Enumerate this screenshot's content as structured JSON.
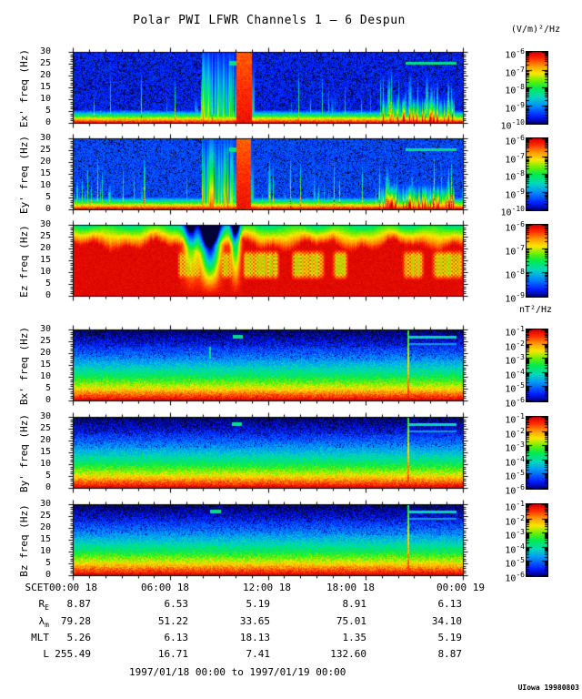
{
  "title": "Polar PWI LFWR Channels 1 — 6 Despun",
  "footer": "1997/01/18 00:00 to 1997/01/19 00:00",
  "credit": "UIowa 19980803",
  "chart_data": {
    "type": "heatmap",
    "description": "Six 24-hour frequency-time spectrograms (0-30 Hz) from Polar PWI LFWR channels 1-6 (Ex', Ey', Ez electric; Bx', By', Bz magnetic), rainbow colour scale, 1997/01/18 00:00 to 1997/01/19 00:00 SCET.",
    "x_axis": {
      "label": "SCET",
      "start": "1997/01/18 00:00",
      "end": "1997/01/19 00:00",
      "major_tick_hours": 6,
      "minor_tick_hours": 1,
      "tick_labels": [
        "00:00 18",
        "06:00 18",
        "12:00 18",
        "18:00 18",
        "00:00 19"
      ]
    },
    "y_axis": {
      "label": "freq (Hz)",
      "range": [
        0,
        30
      ],
      "ticks": [
        0,
        5,
        10,
        15,
        20,
        25,
        30
      ],
      "minor_step": 1
    },
    "colorbar_units": {
      "electric": "(V/m)²/Hz",
      "magnetic": "nT²/Hz"
    },
    "colormap": {
      "order": "red-high-to-blue-low",
      "top_color": "#d70000",
      "bottom_color": "#0000a0"
    },
    "panels": [
      {
        "channel": 1,
        "ylabel": "Ex' freq (Hz)",
        "quantity": "electric",
        "style": "e",
        "seed": 101,
        "cbar_exponents": [
          -6,
          -7,
          -8,
          -9,
          -10
        ],
        "features": {
          "base": 0.0,
          "speckle": 0.24,
          "streaks": 58,
          "burst": [
            0.418,
            0.458
          ],
          "secondary": [
            0.33,
            0.41
          ],
          "cluster": [
            0.79,
            0.975
          ],
          "hline": {
            "f": 25.4,
            "x0": 0.85,
            "x1": 0.98
          },
          "hdash": {
            "f": 25.4,
            "x0": 0.4,
            "x1": 0.43
          }
        }
      },
      {
        "channel": 2,
        "ylabel": "Ey' freq (Hz)",
        "quantity": "electric",
        "style": "e",
        "seed": 202,
        "cbar_exponents": [
          -6,
          -7,
          -8,
          -9,
          -10
        ],
        "features": {
          "base": 0.05,
          "speckle": 0.15,
          "streaks": 62,
          "burst": [
            0.418,
            0.455
          ],
          "secondary": [
            0.33,
            0.41
          ],
          "cluster": [
            0.78,
            0.975
          ],
          "left_cluster": [
            0.005,
            0.07
          ],
          "hline": {
            "f": 25.4,
            "x0": 0.85,
            "x1": 0.98
          },
          "hdash": {
            "f": 25.4,
            "x0": 0.4,
            "x1": 0.43
          }
        }
      },
      {
        "channel": 3,
        "ylabel": "Ez freq (Hz)",
        "quantity": "electric",
        "style": "ez",
        "seed": 303,
        "cbar_exponents": [
          -6,
          -7,
          -8,
          -9
        ],
        "features": {
          "dips": [
            {
              "x": 0.35,
              "w": 0.024,
              "depth": 1.0
            },
            {
              "x": 0.3,
              "w": 0.017,
              "depth": 0.45
            },
            {
              "x": 0.415,
              "w": 0.012,
              "depth": 0.55
            }
          ],
          "patches": [
            [
              0.265,
              0.33
            ],
            [
              0.37,
              0.415
            ],
            [
              0.43,
              0.53
            ],
            [
              0.555,
              0.645
            ],
            [
              0.66,
              0.705
            ],
            [
              0.84,
              0.9
            ],
            [
              0.915,
              1.0
            ]
          ]
        }
      },
      {
        "channel": 4,
        "ylabel": "Bx' freq (Hz)",
        "quantity": "magnetic",
        "style": "b",
        "seed": 404,
        "cbar_exponents": [
          -1,
          -2,
          -3,
          -4,
          -5,
          -6
        ],
        "features": {
          "vline": 0.855,
          "vdash": {
            "x": 0.35,
            "f0": 18,
            "f1": 23
          },
          "hdash": {
            "f": 27,
            "x0": 0.407,
            "x1": 0.434
          },
          "hline": {
            "f": 27,
            "x0": 0.855,
            "x1": 0.98
          },
          "hline2": {
            "f": 24,
            "x0": 0.855,
            "x1": 0.98
          }
        }
      },
      {
        "channel": 5,
        "ylabel": "By' freq (Hz)",
        "quantity": "magnetic",
        "style": "b",
        "seed": 505,
        "cbar_exponents": [
          -1,
          -2,
          -3,
          -4,
          -5,
          -6
        ],
        "features": {
          "vline": 0.855,
          "hdash": {
            "f": 27,
            "x0": 0.405,
            "x1": 0.432
          },
          "hline": {
            "f": 27,
            "x0": 0.855,
            "x1": 0.98
          },
          "hline2": {
            "f": 24,
            "x0": 0.855,
            "x1": 0.98
          }
        }
      },
      {
        "channel": 6,
        "ylabel": "Bz freq (Hz)",
        "quantity": "magnetic",
        "style": "b",
        "seed": 606,
        "cbar_exponents": [
          -1,
          -2,
          -3,
          -4,
          -5,
          -6
        ],
        "features": {
          "vline": 0.855,
          "hdash": {
            "f": 27,
            "x0": 0.35,
            "x1": 0.378
          },
          "hline": {
            "f": 27,
            "x0": 0.855,
            "x1": 0.98
          },
          "hline2": {
            "f": 24,
            "x0": 0.855,
            "x1": 0.98
          }
        }
      }
    ]
  },
  "ephemeris": {
    "rows": [
      {
        "label": "SCET",
        "sub": "",
        "values": [
          "00:00 18",
          "06:00 18",
          "12:00 18",
          "18:00 18",
          "00:00 19"
        ]
      },
      {
        "label": "R",
        "sub": "E",
        "values": [
          "8.87",
          "6.53",
          "5.19",
          "8.91",
          "6.13"
        ]
      },
      {
        "label": "λ",
        "sub": "m",
        "values": [
          "79.28",
          "51.22",
          "33.65",
          "75.01",
          "34.10"
        ]
      },
      {
        "label": "MLT",
        "sub": "",
        "values": [
          "5.26",
          "6.13",
          "18.13",
          "1.35",
          "5.19"
        ]
      },
      {
        "label": "L",
        "sub": "",
        "values": [
          "255.49",
          "16.71",
          "7.41",
          "132.60",
          "8.87"
        ]
      }
    ]
  }
}
